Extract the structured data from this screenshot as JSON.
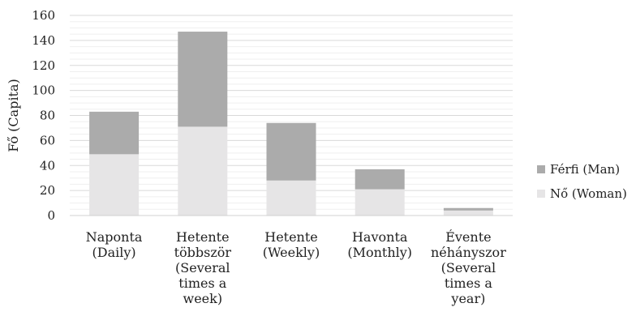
{
  "chart_data": {
    "type": "bar",
    "stacked": true,
    "ylabel": "Fő (Capita)",
    "xlabel": "",
    "ylim": [
      0,
      160
    ],
    "yticks": [
      0,
      20,
      40,
      60,
      80,
      100,
      120,
      140,
      160
    ],
    "grid": true,
    "legend_position": "right",
    "categories": [
      [
        "Naponta",
        "(Daily)"
      ],
      [
        "Hetente",
        "többször",
        "(Several",
        "times a",
        "week)"
      ],
      [
        "Hetente",
        "(Weekly)"
      ],
      [
        "Havonta",
        "(Monthly)"
      ],
      [
        "Évente",
        "néhányszor",
        "(Several",
        "times a",
        "year)"
      ]
    ],
    "series": [
      {
        "name": "Nő (Woman)",
        "color": "#e6e5e6",
        "values": [
          49,
          71,
          28,
          21,
          4
        ]
      },
      {
        "name": "Férfi (Man)",
        "color": "#ababab",
        "values": [
          34,
          76,
          46,
          16,
          2
        ]
      }
    ]
  }
}
